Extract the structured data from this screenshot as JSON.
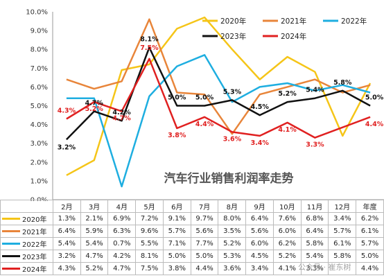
{
  "chart_data": {
    "type": "line",
    "title": "汽车行业销售利润率走势",
    "categories": [
      "2月",
      "3月",
      "4月",
      "5月",
      "6月",
      "7月",
      "8月",
      "9月",
      "10月",
      "11月",
      "12月",
      "年度"
    ],
    "ylim": [
      0,
      10
    ],
    "yticks": [
      "0.0%",
      "1.0%",
      "2.0%",
      "3.0%",
      "4.0%",
      "5.0%",
      "6.0%",
      "7.0%",
      "8.0%",
      "9.0%",
      "10.0%"
    ],
    "legend_position": "top-right",
    "grid": false,
    "series": [
      {
        "name": "2020年",
        "color": "#F5C518",
        "values": [
          1.3,
          2.1,
          6.9,
          7.2,
          9.1,
          9.7,
          8.0,
          6.4,
          7.6,
          6.8,
          3.4,
          6.2
        ],
        "display": [
          "1.3%",
          "2.1%",
          "6.9%",
          "7.2%",
          "9.1%",
          "9.7%",
          "8.0%",
          "6.4%",
          "7.6%",
          "6.8%",
          "3.4%",
          "6.2%"
        ]
      },
      {
        "name": "2021年",
        "color": "#E8853A",
        "values": [
          6.4,
          5.9,
          6.3,
          9.6,
          5.7,
          5.6,
          3.5,
          5.6,
          6.0,
          6.4,
          5.7,
          6.1
        ],
        "display": [
          "6.4%",
          "5.9%",
          "6.3%",
          "9.6%",
          "5.7%",
          "5.6%",
          "3.5%",
          "5.6%",
          "6.0%",
          "6.4%",
          "5.7%",
          "6.1%"
        ]
      },
      {
        "name": "2022年",
        "color": "#1EAEE0",
        "values": [
          5.4,
          5.4,
          0.7,
          5.5,
          7.1,
          7.7,
          5.2,
          6.0,
          6.2,
          5.8,
          6.1,
          5.7
        ],
        "display": [
          "5.4%",
          "5.4%",
          "0.7%",
          "5.5%",
          "7.1%",
          "7.7%",
          "5.2%",
          "6.0%",
          "6.2%",
          "5.8%",
          "6.1%",
          "5.7%"
        ]
      },
      {
        "name": "2023年",
        "color": "#111111",
        "values": [
          3.2,
          4.7,
          4.2,
          8.1,
          5.0,
          5.0,
          5.3,
          4.5,
          5.2,
          5.4,
          5.8,
          5.0
        ],
        "display": [
          "3.2%",
          "4.7%",
          "4.2%",
          "8.1%",
          "5.0%",
          "5.0%",
          "5.3%",
          "4.5%",
          "5.2%",
          "5.4%",
          "5.8%",
          "5.0%"
        ]
      },
      {
        "name": "2024年",
        "color": "#E02020",
        "values": [
          4.3,
          5.2,
          4.7,
          7.5,
          3.8,
          4.4,
          3.6,
          3.4,
          4.1,
          3.3,
          null,
          4.4
        ],
        "display": [
          "4.3%",
          "5.2%",
          "4.7%",
          "7.5%",
          "3.8%",
          "4.4%",
          "3.6%",
          "3.4%",
          "4.1%",
          "3.3%",
          "",
          "4.4%"
        ]
      }
    ]
  },
  "watermark": "公众号 · 崔东树"
}
